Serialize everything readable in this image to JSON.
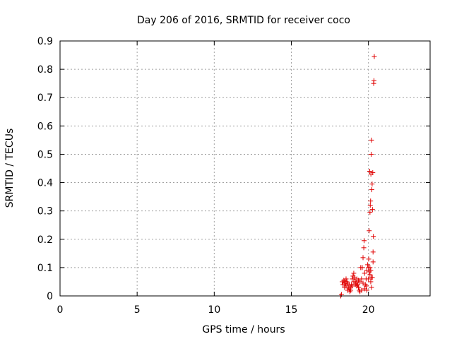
{
  "chart_data": {
    "type": "scatter",
    "title": "Day 206 of 2016, SRMTID for receiver coco",
    "xlabel": "GPS time / hours",
    "ylabel": "SRMTID / TECUs",
    "xlim": [
      0,
      24
    ],
    "ylim": [
      0,
      0.9
    ],
    "xticks": [
      0,
      5,
      10,
      15,
      20
    ],
    "yticks": [
      0,
      0.1,
      0.2,
      0.3,
      0.4,
      0.5,
      0.6,
      0.7,
      0.8,
      0.9
    ],
    "grid": true,
    "marker": "+",
    "color": "#e00000",
    "series": [
      {
        "name": "SRMTID",
        "points": [
          [
            18.2,
            0.0
          ],
          [
            18.25,
            0.005
          ],
          [
            18.3,
            0.05
          ],
          [
            18.35,
            0.04
          ],
          [
            18.4,
            0.055
          ],
          [
            18.45,
            0.03
          ],
          [
            18.5,
            0.045
          ],
          [
            18.55,
            0.035
          ],
          [
            18.6,
            0.05
          ],
          [
            18.65,
            0.02
          ],
          [
            18.7,
            0.03
          ],
          [
            18.75,
            0.025
          ],
          [
            18.8,
            0.015
          ],
          [
            18.85,
            0.03
          ],
          [
            18.9,
            0.04
          ],
          [
            18.95,
            0.06
          ],
          [
            19.0,
            0.07
          ],
          [
            19.05,
            0.08
          ],
          [
            19.1,
            0.065
          ],
          [
            19.15,
            0.05
          ],
          [
            19.2,
            0.045
          ],
          [
            19.25,
            0.035
          ],
          [
            19.3,
            0.04
          ],
          [
            19.35,
            0.03
          ],
          [
            19.4,
            0.02
          ],
          [
            19.45,
            0.05
          ],
          [
            19.5,
            0.1
          ],
          [
            19.55,
            0.06
          ],
          [
            19.6,
            0.1
          ],
          [
            19.65,
            0.135
          ],
          [
            19.7,
            0.17
          ],
          [
            19.72,
            0.195
          ],
          [
            19.75,
            0.08
          ],
          [
            19.8,
            0.04
          ],
          [
            19.85,
            0.06
          ],
          [
            19.9,
            0.09
          ],
          [
            19.95,
            0.11
          ],
          [
            20.0,
            0.1
          ],
          [
            20.02,
            0.13
          ],
          [
            20.05,
            0.23
          ],
          [
            20.08,
            0.44
          ],
          [
            20.1,
            0.295
          ],
          [
            20.12,
            0.32
          ],
          [
            20.14,
            0.335
          ],
          [
            20.16,
            0.43
          ],
          [
            20.18,
            0.5
          ],
          [
            20.2,
            0.55
          ],
          [
            20.22,
            0.375
          ],
          [
            20.24,
            0.395
          ],
          [
            20.26,
            0.305
          ],
          [
            20.28,
            0.435
          ],
          [
            20.3,
            0.155
          ],
          [
            20.32,
            0.21
          ],
          [
            20.34,
            0.75
          ],
          [
            20.36,
            0.76
          ],
          [
            20.38,
            0.845
          ],
          [
            20.3,
            0.12
          ],
          [
            20.25,
            0.065
          ],
          [
            20.2,
            0.03
          ],
          [
            20.15,
            0.05
          ],
          [
            20.1,
            0.075
          ],
          [
            19.9,
            0.02
          ],
          [
            19.85,
            0.035
          ],
          [
            19.75,
            0.025
          ],
          [
            19.65,
            0.045
          ],
          [
            19.55,
            0.02
          ],
          [
            19.45,
            0.015
          ],
          [
            19.35,
            0.055
          ],
          [
            19.25,
            0.06
          ],
          [
            19.15,
            0.04
          ],
          [
            19.05,
            0.05
          ],
          [
            18.95,
            0.035
          ],
          [
            18.85,
            0.02
          ],
          [
            18.75,
            0.04
          ],
          [
            18.65,
            0.045
          ],
          [
            18.55,
            0.06
          ],
          [
            18.45,
            0.05
          ],
          [
            20.0,
            0.06
          ],
          [
            20.05,
            0.085
          ],
          [
            20.1,
            0.1
          ],
          [
            20.15,
            0.09
          ],
          [
            20.2,
            0.065
          ]
        ]
      }
    ]
  }
}
